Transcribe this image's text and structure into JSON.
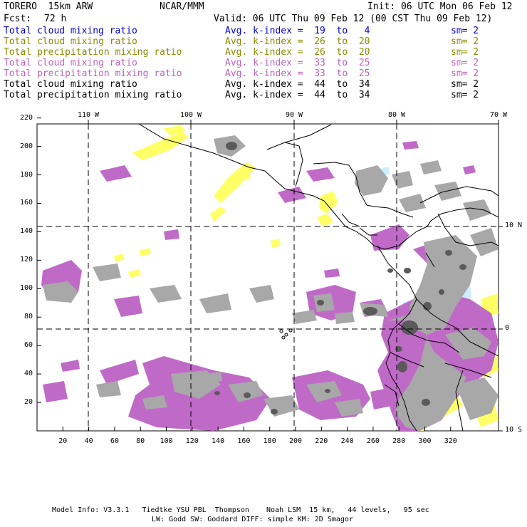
{
  "header": {
    "model": "TORERO  15km ARW",
    "center": "NCAR/MMM",
    "init": "Init: 06 UTC Mon 06 Feb 12",
    "fcst_label": "Fcst:",
    "fcst_value": "72 h",
    "valid": "Valid: 06 UTC Thu 09 Feb 12 (00 CST Thu 09 Feb 12)"
  },
  "legend": [
    {
      "field": "Total cloud mixing ratio",
      "kindex": "Avg. k-index =  19  to   4",
      "sm": "sm= 2",
      "color": "#0000cc"
    },
    {
      "field": "Total cloud mixing ratio",
      "kindex": "Avg. k-index =  26  to  20",
      "sm": "sm= 2",
      "color": "#8b8b00"
    },
    {
      "field": "Total precipitation mixing ratio",
      "kindex": "Avg. k-index =  26  to  20",
      "sm": "sm= 2",
      "color": "#8b8b00"
    },
    {
      "field": "Total cloud mixing ratio",
      "kindex": "Avg. k-index =  33  to  25",
      "sm": "sm= 2",
      "color": "#c060c0"
    },
    {
      "field": "Total precipitation mixing ratio",
      "kindex": "Avg. k-index =  33  to  25",
      "sm": "sm= 2",
      "color": "#c060c0"
    },
    {
      "field": "Total cloud mixing ratio",
      "kindex": "Avg. k-index =  44  to  34",
      "sm": "sm= 2",
      "color": "#000000"
    },
    {
      "field": "Total precipitation mixing ratio",
      "kindex": "Avg. k-index =  44  to  34",
      "sm": "sm= 2",
      "color": "#000000"
    }
  ],
  "axes": {
    "longitude_labels": [
      "110 W",
      "100 W",
      "90 W",
      "80 W",
      "70 W"
    ],
    "latitude_labels": [
      "10 N",
      "0",
      "10 S"
    ],
    "x_ticks": [
      "20",
      "40",
      "60",
      "80",
      "100",
      "120",
      "140",
      "160",
      "180",
      "200",
      "220",
      "240",
      "260",
      "280",
      "300",
      "320"
    ],
    "y_ticks": [
      "220",
      "200",
      "180",
      "160",
      "140",
      "120",
      "100",
      "80",
      "60",
      "40",
      "20"
    ]
  },
  "colors": {
    "gray": "#a8a8a8",
    "dark_gray": "#5a5a5a",
    "purple": "#c06ac8",
    "yellow": "#ffff66",
    "cyan": "#cceeff",
    "border": "#000000"
  },
  "footer": {
    "line1": "Model Info: V3.3.1   Tiedtke YSU PBL  Thompson    Noah LSM  15 km,   44 levels,   95 sec",
    "line2": "LW: Godd SW: Goddard DIFF: simple KM: 2D Smagor"
  }
}
